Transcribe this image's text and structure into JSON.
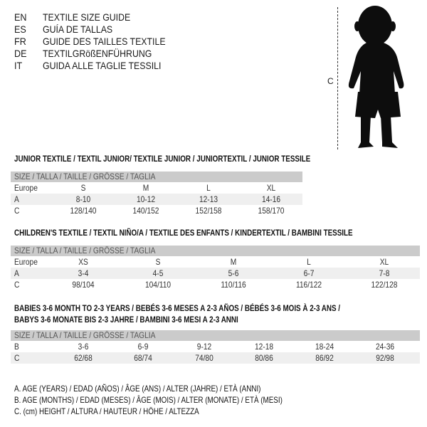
{
  "header": [
    {
      "code": "EN",
      "text": "TEXTILE SIZE GUIDE"
    },
    {
      "code": "ES",
      "text": "GUÍA DE TALLAS"
    },
    {
      "code": "FR",
      "text": "GUIDE DES TAILLES TEXTILE"
    },
    {
      "code": "DE",
      "text": "TEXTILGRößENFÜHRUNG"
    },
    {
      "code": "IT",
      "text": "GUIDA ALLE TAGLIE TESSILI"
    }
  ],
  "figure": {
    "label": "C",
    "icon": "baby-silhouette"
  },
  "tables": [
    {
      "title": [
        "JUNIOR TEXTILE / TEXTIL JUNIOR/ TEXTILE JUNIOR / JUNIORTEXTIL / JUNIOR TESSILE"
      ],
      "header": "SIZE / TALLA / TAILLE / GRÖSSE / TAGLIA",
      "rows": [
        {
          "label": "Europe",
          "cells": [
            "S",
            "M",
            "L",
            "XL"
          ]
        },
        {
          "label": "A",
          "cells": [
            "8-10",
            "10-12",
            "12-13",
            "14-16"
          ]
        },
        {
          "label": "C",
          "cells": [
            "128/140",
            "140/152",
            "152/158",
            "158/170"
          ]
        }
      ]
    },
    {
      "title": [
        "CHILDREN'S TEXTILE / TEXTIL NIÑO/A / TEXTILE DES ENFANTS / KINDERTEXTIL / BAMBINI TESSILE"
      ],
      "header": "SIZE / TALLA / TAILLE / GRÖSSE / TAGLIA",
      "rows": [
        {
          "label": "Europe",
          "cells": [
            "XS",
            "S",
            "M",
            "L",
            "XL"
          ]
        },
        {
          "label": "A",
          "cells": [
            "3-4",
            "4-5",
            "5-6",
            "6-7",
            "7-8"
          ]
        },
        {
          "label": "C",
          "cells": [
            "98/104",
            "104/110",
            "110/116",
            "116/122",
            "122/128"
          ]
        }
      ]
    },
    {
      "title": [
        "BABIES 3-6 MONTH TO 2-3 YEARS / BEBÉS 3-6 MESES A 2-3 AÑOS / BÉBÉS 3-6 MOIS À 2-3 ANS /",
        "BABYS 3-6 MONATE BIS 2-3 JAHRE / BAMBINI 3-6 MESI A 2-3 ANNI"
      ],
      "header": "SIZE / TALLA / TAILLE / GRÖSSE / TAGLIA",
      "rows": [
        {
          "label": "B",
          "cells": [
            "3-6",
            "6-9",
            "9-12",
            "12-18",
            "18-24",
            "24-36"
          ]
        },
        {
          "label": "C",
          "cells": [
            "62/68",
            "68/74",
            "74/80",
            "80/86",
            "86/92",
            "92/98"
          ]
        }
      ]
    }
  ],
  "legend": [
    "A. AGE (YEARS) / EDAD (AÑOS) / ÂGE (ANS) / ALTER (JAHRE) / ETÀ (ANNI)",
    "B. AGE (MONTHS) / EDAD (MESES) / ÂGE (MOIS) / ALTER (MONATE) / ETÀ (MESI)",
    "C. (cm) HEIGHT / ALTURA / HAUTEUR / HÖHE / ALTEZZA"
  ]
}
